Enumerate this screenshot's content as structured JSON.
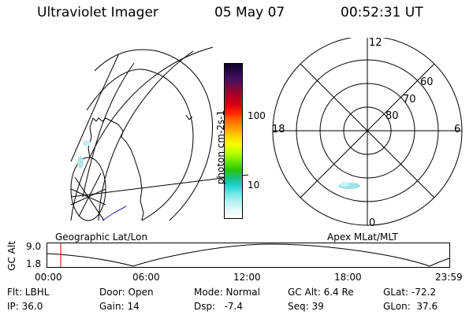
{
  "header": {
    "instrument": "Ultraviolet Imager",
    "date": "05 May 07",
    "time": "00:52:31 UT"
  },
  "colorbar": {
    "label": "photon cm-2s-1",
    "ticks": [
      "100",
      "10"
    ],
    "colors": [
      "#0b0026",
      "#2a0a4a",
      "#4a1060",
      "#7a0d3c",
      "#b00024",
      "#d40014",
      "#ff2200",
      "#ff6a00",
      "#ffa000",
      "#ffd800",
      "#f4ff00",
      "#b8ff00",
      "#6ee600",
      "#2cc800",
      "#18c07a",
      "#20d0d0",
      "#72e6e6",
      "#b6f0f0",
      "#e4f8f8",
      "#ffffff"
    ]
  },
  "polar": {
    "labels": {
      "top": "12",
      "left": "18",
      "right": "6",
      "bottom": "0",
      "r60": "60",
      "r70": "70",
      "r80": "80"
    }
  },
  "map_labels": {
    "left": "Geographic Lat/Lon",
    "right": "Apex MLat/MLT"
  },
  "altitude_plot": {
    "ylabel": "GC Alt",
    "yticks": [
      "9.0",
      "1.8"
    ],
    "xticks": [
      "00:00",
      "06:00",
      "12:00",
      "18:00",
      "23:59"
    ],
    "current_time_marker_color": "#cc0000"
  },
  "footer": {
    "flt": "Flt: LBHL",
    "ip": "IP: 36.0",
    "door": "Door: Open",
    "gain": "Gain: 14",
    "mode": "Mode: Normal",
    "dsp": "Dsp:   -7.4",
    "gcalt": "GC Alt: 6.4 Re",
    "seq": "Seq: 39",
    "glat": "GLat: -72.2",
    "glon": "GLon:  37.6"
  }
}
